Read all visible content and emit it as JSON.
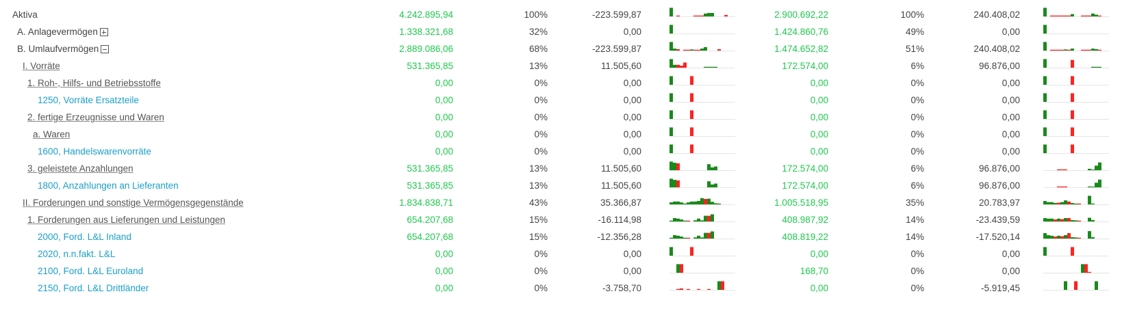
{
  "colors": {
    "value_green": "#1ec84d",
    "account_blue": "#1a9fc9",
    "bar_green": "#1a8a1a",
    "bar_red": "#ff2222"
  },
  "rows": [
    {
      "label": "Aktiva",
      "kind": "plain",
      "v1": "4.242.895,94",
      "p1": "100%",
      "d1": "-223.599,87",
      "v2": "2.900.692,22",
      "p2": "100%",
      "d2": "240.408,02",
      "s1": [
        3,
        0,
        -0.3,
        0,
        0,
        0,
        0,
        -0.3,
        -0.3,
        -0.3,
        1,
        1.2,
        1.2,
        0,
        0,
        0,
        -0.5,
        0
      ],
      "s2": [
        3,
        0,
        -0.3,
        -0.3,
        -0.3,
        -0.3,
        -0.3,
        -0.3,
        0.8,
        0,
        0,
        -0.3,
        -0.3,
        -0.3,
        1,
        0.6,
        -0.3,
        0
      ]
    },
    {
      "label": "A. Anlagevermögen",
      "kind": "plain",
      "toggle": "plus",
      "v1": "1.338.321,68",
      "p1": "32%",
      "d1": "0,00",
      "v2": "1.424.860,76",
      "p2": "49%",
      "d2": "0,00",
      "s1": [
        3,
        0,
        0,
        0,
        0,
        0,
        0,
        0,
        0,
        0,
        0,
        0,
        0,
        0,
        0,
        0,
        0,
        0
      ],
      "s2": [
        3,
        0,
        0,
        0,
        0,
        0,
        0,
        0,
        0,
        0,
        0,
        0,
        0,
        0,
        0,
        0,
        0,
        0
      ]
    },
    {
      "label": "B. Umlaufvermögen",
      "kind": "plain",
      "toggle": "minus",
      "v1": "2.889.086,06",
      "p1": "68%",
      "d1": "-223.599,87",
      "v2": "1.474.652,82",
      "p2": "51%",
      "d2": "240.408,02",
      "s1": [
        3,
        0.7,
        -0.5,
        0,
        -0.3,
        -0.3,
        0.4,
        -0.3,
        -0.3,
        0.7,
        1.2,
        0,
        0,
        0,
        -0.5,
        0,
        0,
        0
      ],
      "s2": [
        3,
        0,
        -0.3,
        -0.3,
        -0.3,
        -0.3,
        0.4,
        -0.3,
        0.7,
        0,
        0,
        -0.3,
        -0.3,
        -0.3,
        0.7,
        0.5,
        -0.3,
        0
      ]
    },
    {
      "label": "I. Vorräte",
      "kind": "link",
      "v1": "531.365,85",
      "p1": "13%",
      "d1": "11.505,60",
      "v2": "172.574,00",
      "p2": "6%",
      "d2": "96.876,00",
      "s1": [
        3,
        1,
        -1,
        -0.7,
        -1.8,
        0,
        0,
        0,
        0,
        0,
        0.3,
        0.3,
        0.3,
        0.3,
        0,
        0,
        0,
        0
      ],
      "s2": [
        3,
        0,
        0,
        0,
        0,
        0,
        0,
        0,
        -2.7,
        0,
        0,
        0,
        0,
        0,
        0.3,
        0.3,
        0.3,
        0
      ]
    },
    {
      "label": "1. Roh-, Hilfs- und Betriebsstoffe",
      "kind": "link",
      "v1": "0,00",
      "p1": "0%",
      "d1": "0,00",
      "v2": "0,00",
      "p2": "0%",
      "d2": "0,00",
      "s1": [
        3,
        0,
        0,
        0,
        0,
        0,
        -3,
        0,
        0,
        0,
        0,
        0,
        0,
        0,
        0,
        0,
        0,
        0
      ],
      "s2": [
        3,
        0,
        0,
        0,
        0,
        0,
        0,
        0,
        -3,
        0,
        0,
        0,
        0,
        0,
        0,
        0,
        0,
        0
      ]
    },
    {
      "label": "1250, Vorräte Ersatzteile",
      "kind": "account",
      "v1": "0,00",
      "p1": "0%",
      "d1": "0,00",
      "v2": "0,00",
      "p2": "0%",
      "d2": "0,00",
      "s1": [
        3,
        0,
        0,
        0,
        0,
        0,
        -3,
        0,
        0,
        0,
        0,
        0,
        0,
        0,
        0,
        0,
        0,
        0
      ],
      "s2": [
        3,
        0,
        0,
        0,
        0,
        0,
        0,
        0,
        -3,
        0,
        0,
        0,
        0,
        0,
        0,
        0,
        0,
        0
      ]
    },
    {
      "label": "2. fertige Erzeugnisse und Waren",
      "kind": "link",
      "v1": "0,00",
      "p1": "0%",
      "d1": "0,00",
      "v2": "0,00",
      "p2": "0%",
      "d2": "0,00",
      "s1": [
        3,
        0,
        0,
        0,
        0,
        0,
        -3,
        0,
        0,
        0,
        0,
        0,
        0,
        0,
        0,
        0,
        0,
        0
      ],
      "s2": [
        3,
        0,
        0,
        0,
        0,
        0,
        0,
        0,
        -3,
        0,
        0,
        0,
        0,
        0,
        0,
        0,
        0,
        0
      ]
    },
    {
      "label": "a. Waren",
      "kind": "link",
      "v1": "0,00",
      "p1": "0%",
      "d1": "0,00",
      "v2": "0,00",
      "p2": "0%",
      "d2": "0,00",
      "s1": [
        3,
        0,
        0,
        0,
        0,
        0,
        -3,
        0,
        0,
        0,
        0,
        0,
        0,
        0,
        0,
        0,
        0,
        0
      ],
      "s2": [
        3,
        0,
        0,
        0,
        0,
        0,
        0,
        0,
        -3,
        0,
        0,
        0,
        0,
        0,
        0,
        0,
        0,
        0
      ]
    },
    {
      "label": "1600, Handelswarenvorräte",
      "kind": "account",
      "v1": "0,00",
      "p1": "0%",
      "d1": "0,00",
      "v2": "0,00",
      "p2": "0%",
      "d2": "0,00",
      "s1": [
        3,
        0,
        0,
        0,
        0,
        0,
        -3,
        0,
        0,
        0,
        0,
        0,
        0,
        0,
        0,
        0,
        0,
        0
      ],
      "s2": [
        3,
        0,
        0,
        0,
        0,
        0,
        0,
        0,
        -3,
        0,
        0,
        0,
        0,
        0,
        0,
        0,
        0,
        0
      ]
    },
    {
      "label": "3. geleistete Anzahlungen",
      "kind": "link",
      "v1": "531.365,85",
      "p1": "13%",
      "d1": "11.505,60",
      "v2": "172.574,00",
      "p2": "6%",
      "d2": "96.876,00",
      "s1": [
        3,
        2.6,
        -2.4,
        0,
        0,
        0,
        0,
        0,
        0,
        0,
        0,
        2.1,
        1,
        1.3,
        0,
        0,
        0,
        0
      ],
      "s2": [
        0,
        0,
        0,
        0,
        -0.3,
        -0.3,
        -0.3,
        0,
        0,
        0,
        0,
        0,
        0,
        0.5,
        0.2,
        1.6,
        2.7,
        0
      ]
    },
    {
      "label": "1800, Anzahlungen an Lieferanten",
      "kind": "account",
      "v1": "531.365,85",
      "p1": "13%",
      "d1": "11.505,60",
      "v2": "172.574,00",
      "p2": "6%",
      "d2": "96.876,00",
      "s1": [
        3,
        2.6,
        -2.4,
        0,
        0,
        0,
        0,
        0,
        0,
        0,
        0,
        2.1,
        1,
        1.3,
        0,
        0,
        0,
        0
      ],
      "s2": [
        0,
        0,
        0,
        0,
        -0.3,
        -0.3,
        -0.3,
        0,
        0,
        0,
        0,
        0,
        0,
        0.3,
        0.2,
        1.6,
        2.7,
        0
      ]
    },
    {
      "label": "II. Forderungen und sonstige Vermögensgegenstände",
      "kind": "link",
      "v1": "1.834.838,71",
      "p1": "43%",
      "d1": "35.366,87",
      "v2": "1.005.518,95",
      "p2": "35%",
      "d2": "20.783,97",
      "s1": [
        0.7,
        1,
        1,
        0.7,
        0.3,
        0.7,
        1,
        1,
        1.2,
        2.2,
        -1.9,
        2,
        0.9,
        0.4,
        0.3,
        0,
        0,
        0
      ],
      "s2": [
        1.2,
        0.8,
        0.8,
        0.5,
        -0.6,
        0.8,
        1.4,
        -1,
        0.5,
        0.3,
        -0.3,
        0,
        0,
        3,
        0.3,
        0,
        0,
        0
      ]
    },
    {
      "label": "1. Forderungen aus Lieferungen und Leistungen",
      "kind": "link",
      "v1": "654.207,68",
      "p1": "15%",
      "d1": "-16.114,98",
      "v2": "408.987,92",
      "p2": "14%",
      "d2": "-23.439,59",
      "s1": [
        0.3,
        1.2,
        1,
        0.7,
        0.3,
        -0.3,
        0,
        0.4,
        1,
        0.4,
        2,
        -2,
        2.5,
        0,
        0,
        0,
        0,
        0
      ],
      "s2": [
        1.2,
        1,
        1,
        -0.7,
        1,
        -0.8,
        1.2,
        -1.2,
        0.5,
        0.4,
        -0.3,
        0,
        0,
        1.3,
        0.5,
        0,
        0,
        0
      ]
    },
    {
      "label": "2000, Ford. L&L Inland",
      "kind": "account",
      "v1": "654.207,68",
      "p1": "15%",
      "d1": "-12.356,28",
      "v2": "408.819,22",
      "p2": "14%",
      "d2": "-17.520,14",
      "s1": [
        0.3,
        1.2,
        1,
        0.7,
        0.3,
        -0.3,
        0,
        0.4,
        1,
        0.4,
        2,
        -2,
        2.5,
        0,
        0,
        0,
        0,
        0
      ],
      "s2": [
        1.9,
        1.2,
        1,
        -0.7,
        1,
        -0.8,
        1.2,
        -1.9,
        0.5,
        0.4,
        -0.3,
        0,
        0,
        2.6,
        0.5,
        0,
        0,
        0
      ]
    },
    {
      "label": "2020, n.n.fakt. L&L",
      "kind": "account",
      "v1": "0,00",
      "p1": "0%",
      "d1": "0,00",
      "v2": "0,00",
      "p2": "0%",
      "d2": "0,00",
      "s1": [
        3,
        0,
        0,
        0,
        0,
        0,
        -3,
        0,
        0,
        0,
        0,
        0,
        0,
        0,
        0,
        0,
        0,
        0
      ],
      "s2": [
        3,
        0,
        0,
        0,
        0,
        0,
        0,
        0,
        -3,
        0,
        0,
        0,
        0,
        0,
        0,
        0,
        0,
        0
      ]
    },
    {
      "label": "2100, Ford. L&L Euroland",
      "kind": "account",
      "v1": "0,00",
      "p1": "0%",
      "d1": "0,00",
      "v2": "168,70",
      "p2": "0%",
      "d2": "0,00",
      "s1": [
        0,
        0,
        3,
        -3,
        0,
        0,
        0,
        0,
        0,
        0,
        0,
        0,
        0,
        0,
        0,
        0,
        0,
        0
      ],
      "s2": [
        0,
        0,
        0,
        0,
        0,
        0,
        0,
        0,
        0,
        0,
        0,
        3,
        -3,
        -0.3,
        0,
        0,
        0,
        0
      ]
    },
    {
      "label": "2150, Ford. L&L Drittländer",
      "kind": "account",
      "v1": "0,00",
      "p1": "0%",
      "d1": "-3.758,70",
      "v2": "0,00",
      "p2": "0%",
      "d2": "-5.919,45",
      "s1": [
        0,
        0,
        -0.3,
        -0.5,
        0,
        -0.3,
        0,
        0,
        -0.3,
        0,
        0,
        -0.3,
        0,
        0,
        3,
        -3,
        0,
        0
      ],
      "s2": [
        0,
        0,
        0,
        0,
        0,
        0,
        3,
        0,
        0,
        -3,
        0,
        0,
        0,
        0,
        0,
        3,
        0,
        0
      ]
    }
  ]
}
